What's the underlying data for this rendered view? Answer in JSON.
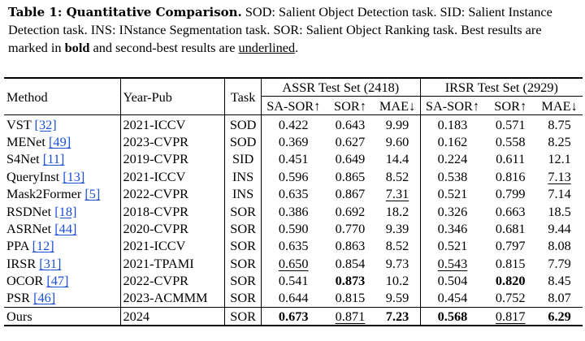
{
  "caption": {
    "label": "Table 1: Quantitative Comparison.",
    "text1": " SOD: Salient Object Detection task. SID: Salient Instance Detection task. INS: INstance Segmentation task. SOR: Salient Object Ranking task. Best results are marked in ",
    "bold_word": "bold",
    "text2": " and second-best results are ",
    "underline_word": "underlined",
    "text3": "."
  },
  "table": {
    "headers": {
      "method": "Method",
      "year": "Year-Pub",
      "task": "Task",
      "assr": "ASSR Test Set (2418)",
      "irsr": "IRSR Test Set (2929)",
      "metrics": [
        "SA-SOR↑",
        "SOR↑",
        "MAE↓",
        "SA-SOR↑",
        "SOR↑",
        "MAE↓"
      ]
    },
    "rows": [
      {
        "method": "VST",
        "ref": "[32]",
        "year": "2021-ICCV",
        "task": "SOD",
        "vals": [
          "0.422",
          "0.643",
          "9.99",
          "0.183",
          "0.571",
          "8.75"
        ]
      },
      {
        "method": "MENet",
        "ref": "[49]",
        "year": "2023-CVPR",
        "task": "SOD",
        "vals": [
          "0.369",
          "0.627",
          "9.60",
          "0.162",
          "0.558",
          "8.25"
        ]
      },
      {
        "method": "S4Net",
        "ref": "[11]",
        "year": "2019-CVPR",
        "task": "SID",
        "vals": [
          "0.451",
          "0.649",
          "14.4",
          "0.224",
          "0.611",
          "12.1"
        ]
      },
      {
        "method": "QueryInst",
        "ref": "[13]",
        "year": "2021-ICCV",
        "task": "INS",
        "vals": [
          "0.596",
          "0.865",
          "8.52",
          "0.538",
          "0.816",
          "7.13"
        ]
      },
      {
        "method": "Mask2Former",
        "ref": "[5]",
        "year": "2022-CVPR",
        "task": "INS",
        "vals": [
          "0.635",
          "0.867",
          "7.31",
          "0.521",
          "0.799",
          "7.14"
        ]
      },
      {
        "method": "RSDNet",
        "ref": "[18]",
        "year": "2018-CVPR",
        "task": "SOR",
        "vals": [
          "0.386",
          "0.692",
          "18.2",
          "0.326",
          "0.663",
          "18.5"
        ]
      },
      {
        "method": "ASRNet",
        "ref": "[44]",
        "year": "2020-CVPR",
        "task": "SOR",
        "vals": [
          "0.590",
          "0.770",
          "9.39",
          "0.346",
          "0.681",
          "9.44"
        ]
      },
      {
        "method": "PPA",
        "ref": "[12]",
        "year": "2021-ICCV",
        "task": "SOR",
        "vals": [
          "0.635",
          "0.863",
          "8.52",
          "0.521",
          "0.797",
          "8.08"
        ]
      },
      {
        "method": "IRSR",
        "ref": "[31]",
        "year": "2021-TPAMI",
        "task": "SOR",
        "vals": [
          "0.650",
          "0.854",
          "9.73",
          "0.543",
          "0.815",
          "7.79"
        ]
      },
      {
        "method": "OCOR",
        "ref": "[47]",
        "year": "2022-CVPR",
        "task": "SOR",
        "vals": [
          "0.541",
          "0.873",
          "10.2",
          "0.504",
          "0.820",
          "8.45"
        ]
      },
      {
        "method": "PSR",
        "ref": "[46]",
        "year": "2023-ACMMM",
        "task": "SOR",
        "vals": [
          "0.644",
          "0.815",
          "9.59",
          "0.454",
          "0.752",
          "8.07"
        ]
      }
    ],
    "ours": {
      "method": "Ours",
      "year": "2024",
      "task": "SOR",
      "vals": [
        "0.673",
        "0.871",
        "7.23",
        "0.568",
        "0.817",
        "6.29"
      ]
    }
  }
}
